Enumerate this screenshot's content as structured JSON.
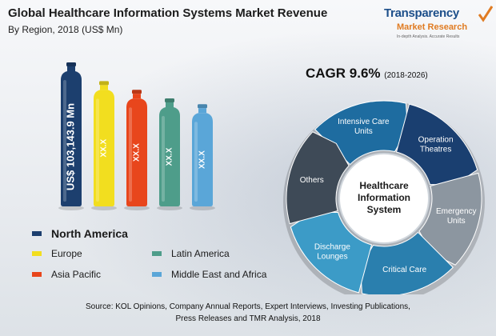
{
  "title": "Global Healthcare Information Systems Market Revenue",
  "subtitle": "By Region, 2018 (US$ Mn)",
  "logo": {
    "line1": "Transparency",
    "line2": "Market Research",
    "line3": "In-depth Analysis. Accurate Results"
  },
  "chart_data": {
    "type": "bar",
    "title": "Global Healthcare Information Systems Market Revenue",
    "subtitle": "By Region, 2018 (US$ Mn)",
    "categories": [
      "North America",
      "Europe",
      "Asia Pacific",
      "Latin America",
      "Middle East and Africa"
    ],
    "series": [
      {
        "values": [
          103143.9,
          null,
          null,
          null,
          null
        ]
      }
    ],
    "bar_labels": [
      "US$ 103,143.9 Mn",
      "XX.X",
      "XX.X",
      "XX.X",
      "XX.X"
    ],
    "relative_heights": [
      1.0,
      0.87,
      0.81,
      0.75,
      0.71
    ],
    "colors": [
      "#1c3f6e",
      "#f2de1f",
      "#e8461c",
      "#4e9d8a",
      "#5aa6d8"
    ],
    "legend_placement": "bottom-left"
  },
  "legend": [
    {
      "label": "North America",
      "color": "#1c3f6e"
    },
    {
      "label": "Europe",
      "color": "#f2de1f"
    },
    {
      "label": "Asia Pacific",
      "color": "#e8461c"
    },
    {
      "label": "Latin America",
      "color": "#4e9d8a"
    },
    {
      "label": "Middle East and Africa",
      "color": "#5aa6d8"
    }
  ],
  "cagr": {
    "label": "CAGR 9.6%",
    "period": "(2018-2026)"
  },
  "cycle": {
    "center": [
      "Healthcare",
      "Information",
      "System"
    ],
    "segments": [
      {
        "label": [
          "Intensive Care",
          "Units"
        ],
        "color": "#1e6ca0"
      },
      {
        "label": [
          "Operation",
          "Theatres"
        ],
        "color": "#1a3f70"
      },
      {
        "label": [
          "Emergency",
          "Units"
        ],
        "color": "#8c96a0"
      },
      {
        "label": [
          "Critical Care"
        ],
        "color": "#2a7fae"
      },
      {
        "label": [
          "Discharge",
          "Lounges"
        ],
        "color": "#3c9bc7"
      },
      {
        "label": [
          "Others"
        ],
        "color": "#3e4a57"
      }
    ]
  },
  "source": {
    "line1": "Source: KOL Opinions, Company Annual Reports, Expert Interviews, Investing Publications,",
    "line2": "Press Releases and TMR Analysis, 2018"
  }
}
